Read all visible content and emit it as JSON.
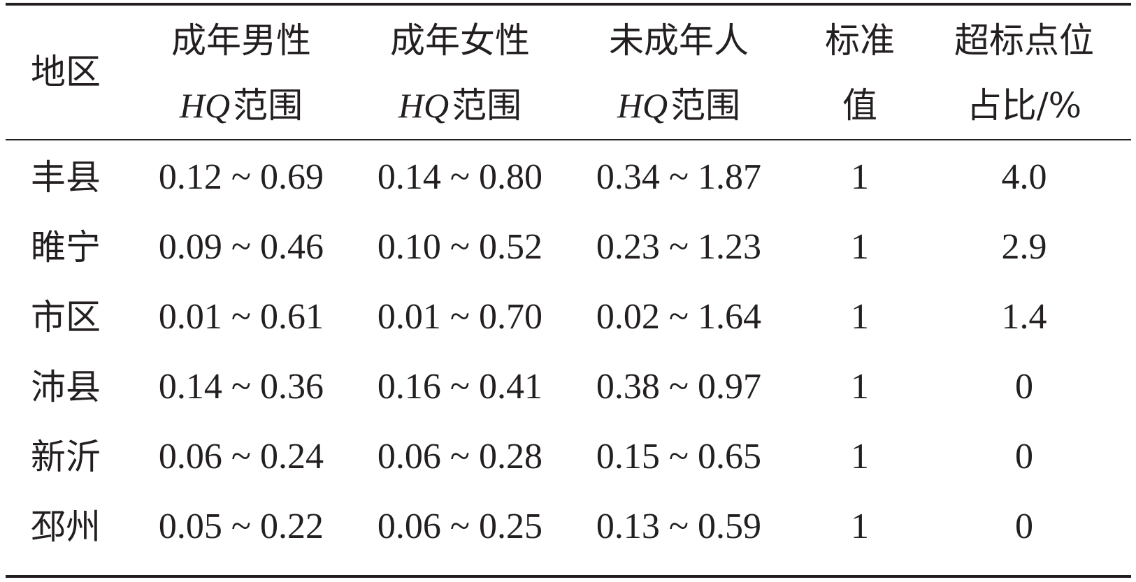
{
  "table": {
    "header": {
      "region": "地区",
      "col1_line1": "成年男性",
      "col1_line2_italic": "HQ",
      "col1_line2_rest": "范围",
      "col2_line1": "成年女性",
      "col2_line2_italic": "HQ",
      "col2_line2_rest": "范围",
      "col3_line1": "未成年人",
      "col3_line2_italic": "HQ",
      "col3_line2_rest": "范围",
      "col4_line1": "标准",
      "col4_line2": "值",
      "col5_line1": "超标点位",
      "col5_line2": "占比/%"
    },
    "rows": [
      {
        "region": "丰县",
        "male": "0.12 ~ 0.69",
        "female": "0.14 ~ 0.80",
        "minor": "0.34 ~ 1.87",
        "standard": "1",
        "exceed": "4.0"
      },
      {
        "region": "睢宁",
        "male": "0.09 ~ 0.46",
        "female": "0.10 ~ 0.52",
        "minor": "0.23 ~ 1.23",
        "standard": "1",
        "exceed": "2.9"
      },
      {
        "region": "市区",
        "male": "0.01 ~ 0.61",
        "female": "0.01 ~ 0.70",
        "minor": "0.02 ~ 1.64",
        "standard": "1",
        "exceed": "1.4"
      },
      {
        "region": "沛县",
        "male": "0.14 ~ 0.36",
        "female": "0.16 ~ 0.41",
        "minor": "0.38 ~ 0.97",
        "standard": "1",
        "exceed": "0"
      },
      {
        "region": "新沂",
        "male": "0.06 ~ 0.24",
        "female": "0.06 ~ 0.28",
        "minor": "0.15 ~ 0.65",
        "standard": "1",
        "exceed": "0"
      },
      {
        "region": "邳州",
        "male": "0.05 ~ 0.22",
        "female": "0.06 ~ 0.25",
        "minor": "0.13 ~ 0.59",
        "standard": "1",
        "exceed": "0"
      }
    ]
  }
}
